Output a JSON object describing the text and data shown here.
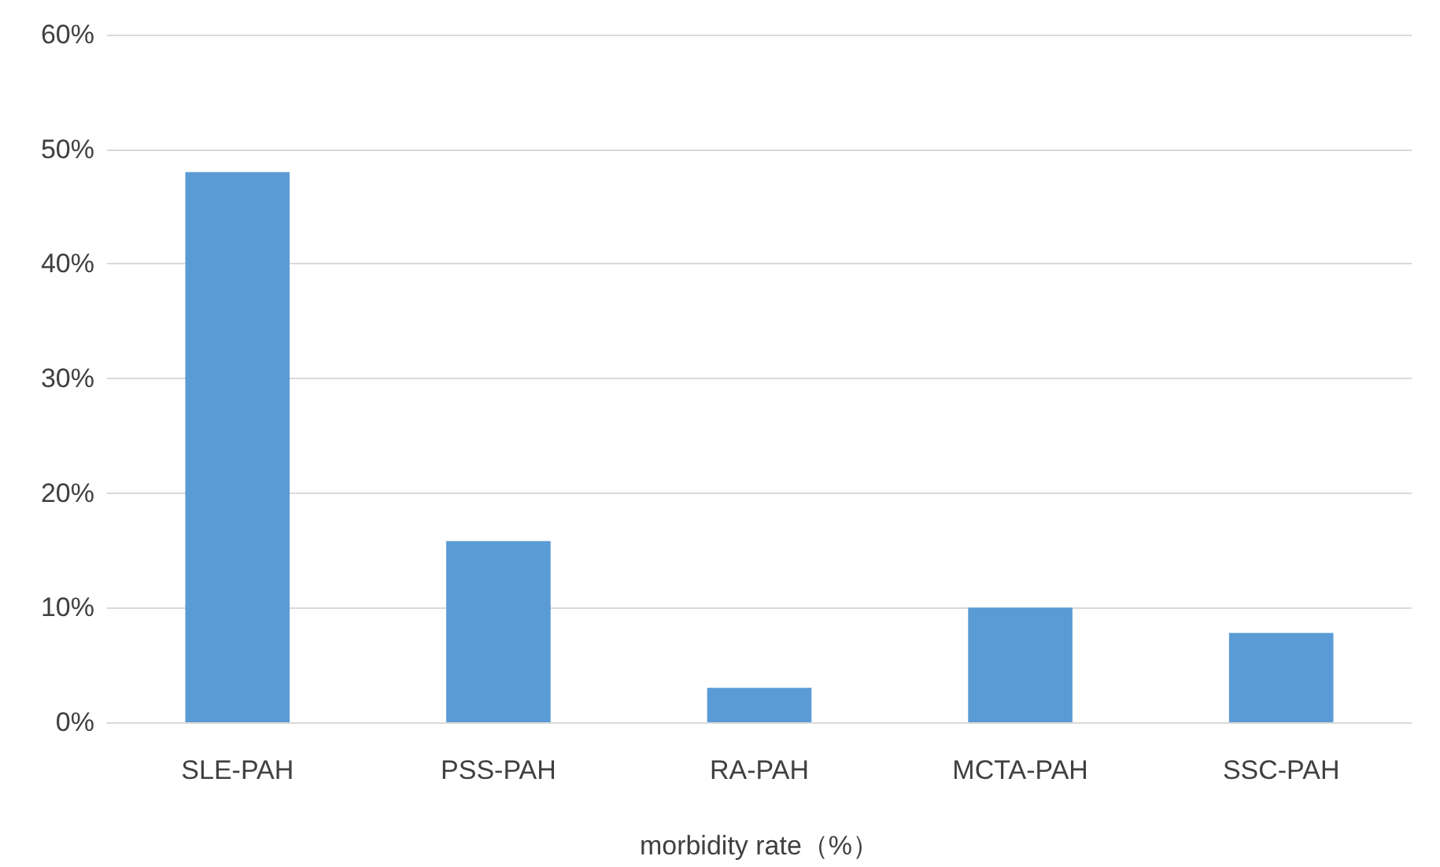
{
  "chart_data": {
    "type": "bar",
    "xlabel": "morbidity rate（%）",
    "categories": [
      "SLE-PAH",
      "PSS-PAH",
      "RA-PAH",
      "MCTA-PAH",
      "SSC-PAH"
    ],
    "series": [
      {
        "color": "#5b9bd5",
        "values": [
          48,
          15.8,
          3,
          10,
          7.8
        ]
      }
    ],
    "ylim": [
      0,
      60
    ],
    "yticks": [
      {
        "value": 0,
        "label": "0%"
      },
      {
        "value": 10,
        "label": "10%"
      },
      {
        "value": 20,
        "label": "20%"
      },
      {
        "value": 30,
        "label": "30%"
      },
      {
        "value": 40,
        "label": "40%"
      },
      {
        "value": 50,
        "label": "50%"
      },
      {
        "value": 60,
        "label": "60%"
      }
    ],
    "grid": "y"
  }
}
